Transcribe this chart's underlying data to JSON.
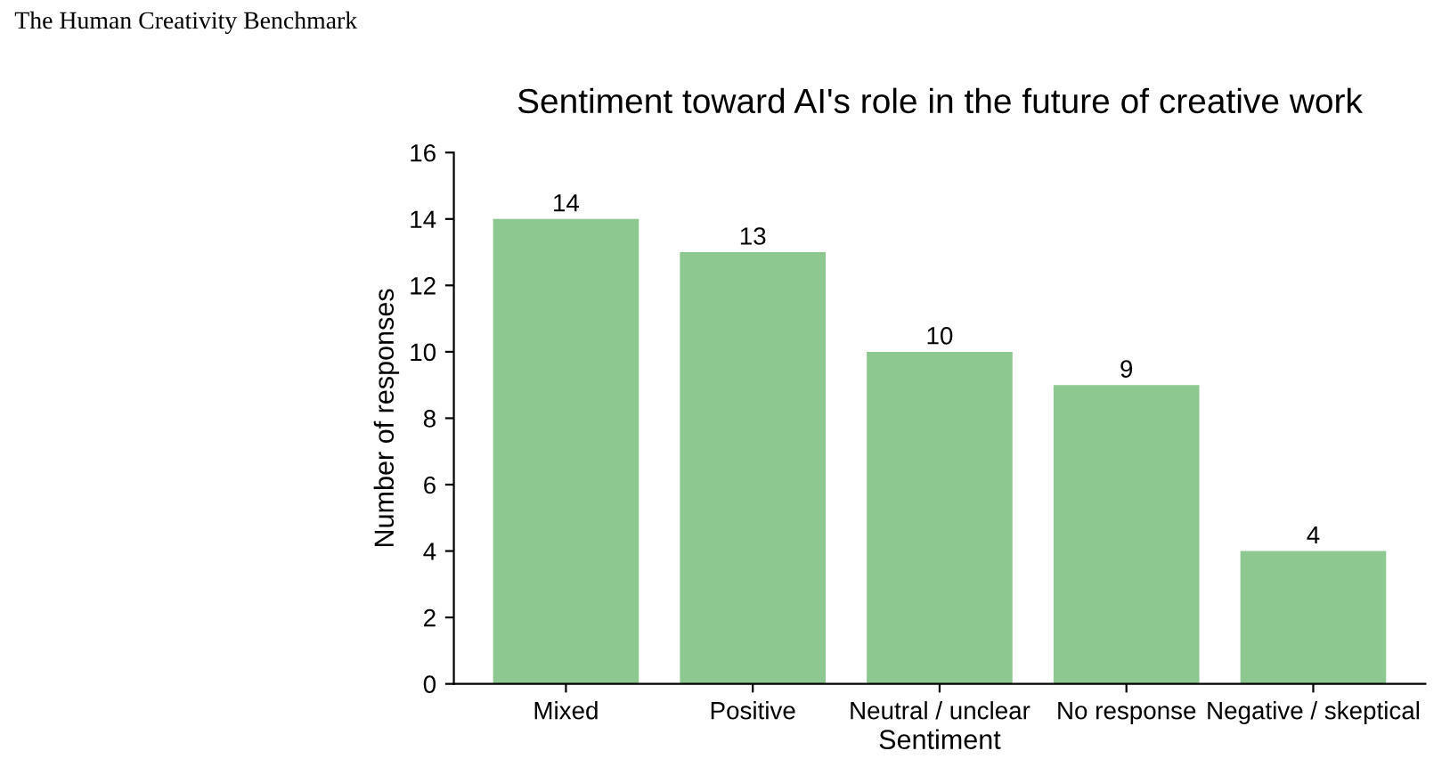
{
  "chart_data": {
    "type": "bar",
    "title": "Sentiment toward AI's role in the future of creative work",
    "annotations": [
      "The Human Creativity Benchmark"
    ],
    "xlabel": "Sentiment",
    "ylabel": "Number of responses",
    "categories": [
      "Mixed",
      "Positive",
      "Neutral / unclear",
      "No response",
      "Negative / skeptical"
    ],
    "values": [
      14,
      13,
      10,
      9,
      4
    ],
    "color": "#8cc88f",
    "ylim": [
      0,
      16
    ],
    "yticks": [
      0,
      2,
      4,
      6,
      8,
      10,
      12,
      14,
      16
    ],
    "grid": false,
    "data_labels": true
  }
}
